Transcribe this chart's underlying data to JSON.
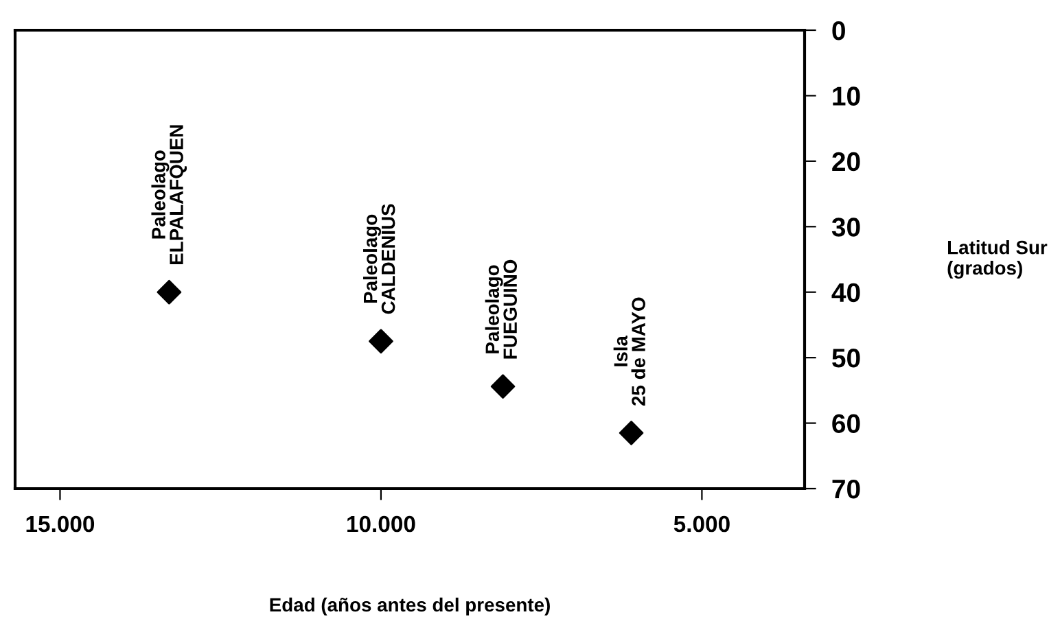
{
  "chart_data": {
    "type": "scatter",
    "xlabel": "Edad (años antes del presente)",
    "ylabel": "Latitud Sur\n(grados)",
    "x": [
      13300,
      10000,
      8100,
      6100
    ],
    "values": [
      40,
      47.5,
      54.4,
      61.5
    ],
    "color": "#000000",
    "marker": "diamond",
    "xlim": [
      15700,
      3400
    ],
    "xticks": [
      {
        "value": 15000,
        "label": "15.000"
      },
      {
        "value": 10000,
        "label": "10.000"
      },
      {
        "value": 5000,
        "label": "5.000"
      }
    ],
    "ylim": [
      70,
      0
    ],
    "yticks": [
      0,
      10,
      20,
      30,
      40,
      50,
      60,
      70
    ],
    "grid": false,
    "annotations": [
      {
        "text": "Paleolago\nELPALAFQUEN",
        "x": 13300,
        "y": 40
      },
      {
        "text": "Paleolago\nCALDENIUS",
        "x": 10000,
        "y": 47.5
      },
      {
        "text": "Paleolago\nFUEGUINO",
        "x": 8100,
        "y": 54.4
      },
      {
        "text": "Isla\n25 de MAYO",
        "x": 6100,
        "y": 61.5
      }
    ]
  }
}
